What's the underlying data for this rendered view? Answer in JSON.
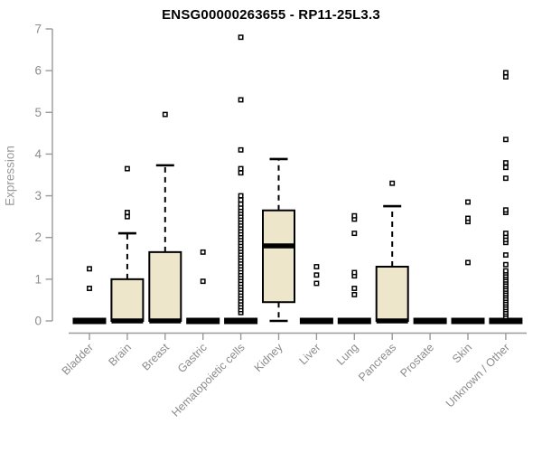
{
  "colors": {
    "box_fill": "#ede6cb",
    "box_stroke": "#000000",
    "axis": "#9a9a9a",
    "tick_text": "#8c8c8c",
    "title_text": "#000000"
  },
  "chart_data": {
    "type": "boxplot",
    "title": "ENSG00000263655 - RP11-25L3.3",
    "xlabel": "",
    "ylabel": "Expression",
    "ylim": [
      0,
      7
    ],
    "yticks": [
      0,
      1,
      2,
      3,
      4,
      5,
      6,
      7
    ],
    "grid": false,
    "legend": "none",
    "categories": [
      "Bladder",
      "Brain",
      "Breast",
      "Gastric",
      "Hematopoietic cells",
      "Kidney",
      "Liver",
      "Lung",
      "Pancreas",
      "Prostate",
      "Skin",
      "Unknown / Other"
    ],
    "series": [
      {
        "category": "Bladder",
        "low": 0,
        "q1": 0,
        "median": 0,
        "q3": 0,
        "high": 0,
        "outliers": [
          0.78,
          1.25
        ]
      },
      {
        "category": "Brain",
        "low": 0,
        "q1": 0,
        "median": 0,
        "q3": 1.0,
        "high": 2.1,
        "outliers": [
          2.5,
          2.6,
          3.65
        ]
      },
      {
        "category": "Breast",
        "low": 0,
        "q1": 0,
        "median": 0,
        "q3": 1.65,
        "high": 3.73,
        "outliers": [
          4.95
        ]
      },
      {
        "category": "Gastric",
        "low": 0,
        "q1": 0,
        "median": 0,
        "q3": 0,
        "high": 0,
        "outliers": [
          0.95,
          1.65
        ]
      },
      {
        "category": "Hematopoietic cells",
        "low": 0,
        "q1": 0,
        "median": 0,
        "q3": 0,
        "high": 0,
        "outliers": [
          0.2,
          0.27,
          0.34,
          0.41,
          0.48,
          0.55,
          0.62,
          0.69,
          0.76,
          0.83,
          0.9,
          0.97,
          1.04,
          1.11,
          1.18,
          1.25,
          1.32,
          1.39,
          1.46,
          1.53,
          1.6,
          1.67,
          1.74,
          1.81,
          1.88,
          1.95,
          2.02,
          2.09,
          2.16,
          2.23,
          2.3,
          2.37,
          2.44,
          2.51,
          2.58,
          2.65,
          2.72,
          2.8,
          2.9,
          3.0,
          3.55,
          3.65,
          4.1,
          5.3,
          6.8
        ]
      },
      {
        "category": "Kidney",
        "low": 0,
        "q1": 0.45,
        "median": 1.8,
        "q3": 2.65,
        "high": 3.88,
        "outliers": []
      },
      {
        "category": "Liver",
        "low": 0,
        "q1": 0,
        "median": 0,
        "q3": 0,
        "high": 0,
        "outliers": [
          0.9,
          1.1,
          1.3
        ]
      },
      {
        "category": "Lung",
        "low": 0,
        "q1": 0,
        "median": 0,
        "q3": 0,
        "high": 0,
        "outliers": [
          0.63,
          0.78,
          1.08,
          1.16,
          2.1,
          2.44,
          2.52
        ]
      },
      {
        "category": "Pancreas",
        "low": 0,
        "q1": 0,
        "median": 0,
        "q3": 1.3,
        "high": 2.75,
        "outliers": [
          3.3
        ]
      },
      {
        "category": "Prostate",
        "low": 0,
        "q1": 0,
        "median": 0,
        "q3": 0,
        "high": 0,
        "outliers": []
      },
      {
        "category": "Skin",
        "low": 0,
        "q1": 0,
        "median": 0,
        "q3": 0,
        "high": 0,
        "outliers": [
          1.4,
          2.38,
          2.46,
          2.85
        ]
      },
      {
        "category": "Unknown / Other",
        "low": 0,
        "q1": 0,
        "median": 0,
        "q3": 0,
        "high": 0,
        "outliers": [
          0.1,
          0.16,
          0.21,
          0.27,
          0.32,
          0.38,
          0.43,
          0.49,
          0.54,
          0.6,
          0.65,
          0.71,
          0.76,
          0.82,
          0.87,
          0.93,
          0.98,
          1.04,
          1.09,
          1.15,
          1.2,
          1.35,
          1.58,
          1.88,
          1.95,
          2.03,
          2.1,
          2.6,
          2.66,
          3.42,
          3.68,
          3.79,
          4.35,
          5.85,
          5.95
        ]
      }
    ]
  }
}
